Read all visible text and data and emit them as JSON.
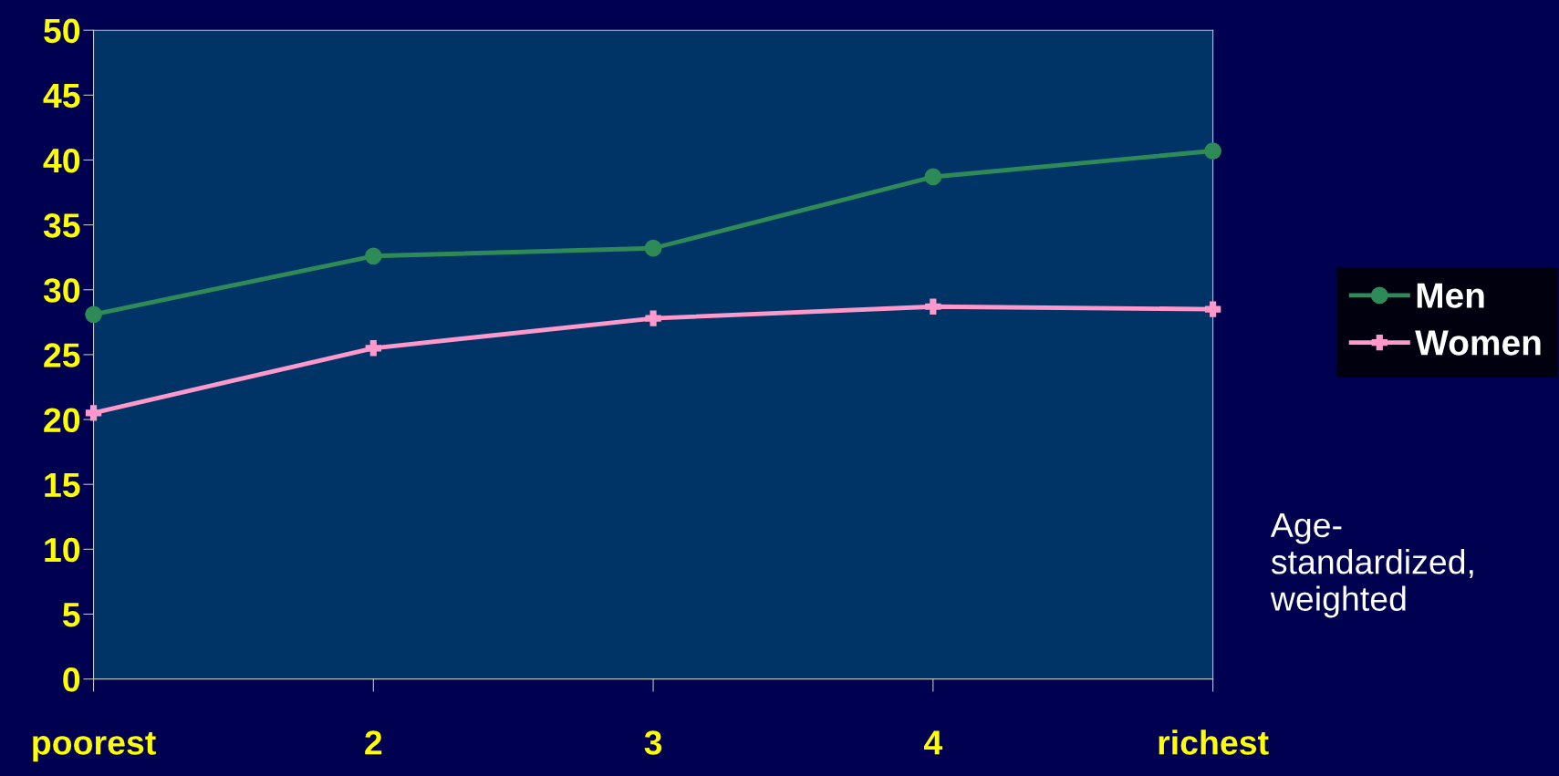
{
  "chart_data": {
    "type": "line",
    "categories": [
      "poorest",
      "2",
      "3",
      "4",
      "richest"
    ],
    "series": [
      {
        "name": "Men",
        "color": "#2e8b57",
        "marker": "circle",
        "values": [
          28.1,
          32.6,
          33.2,
          38.7,
          40.7
        ]
      },
      {
        "name": "Women",
        "color": "#ff99cc",
        "marker": "cross",
        "values": [
          20.5,
          25.5,
          27.8,
          28.7,
          28.5
        ]
      }
    ],
    "ylim": [
      0,
      50
    ],
    "yticks": [
      0,
      5,
      10,
      15,
      20,
      25,
      30,
      35,
      40,
      45,
      50
    ],
    "grid": false,
    "legend": "right",
    "annotations": [
      "Age-\nstandardized,\nweighted"
    ]
  }
}
